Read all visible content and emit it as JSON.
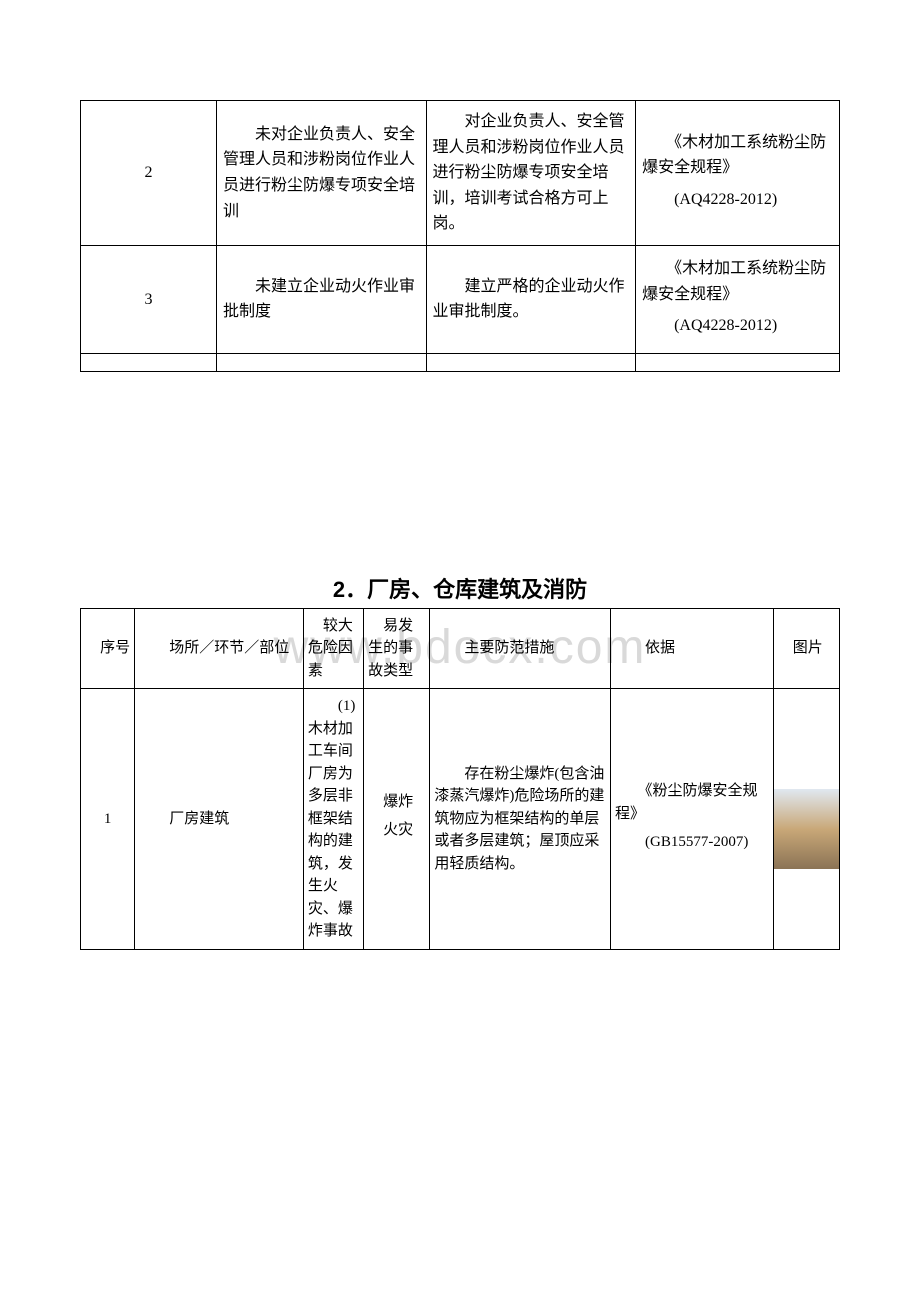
{
  "watermark": "www.bdocx.com",
  "table1": {
    "rows": [
      {
        "num": "2",
        "risk": "　　未对企业负责人、安全管理人员和涉粉岗位作业人员进行粉尘防爆专项安全培训",
        "measure": "　　对企业负责人、安全管理人员和涉粉岗位作业人员进行粉尘防爆专项安全培训，培训考试合格方可上岗。",
        "basis_title": "　　《木材加工系统粉尘防爆安全规程》",
        "basis_code": "　　(AQ4228-2012)"
      },
      {
        "num": "3",
        "risk": "　　未建立企业动火作业审批制度",
        "measure": "　　建立严格的企业动火作业审批制度。",
        "basis_title": "　　《木材加工系统粉尘防爆安全规程》",
        "basis_code": "　　(AQ4228-2012)"
      }
    ]
  },
  "section2_title": "2．厂房、仓库建筑及消防",
  "table2": {
    "headers": {
      "num": "　序号",
      "place": "　　场所／环节／部位",
      "risk": "　较大危险因素",
      "type": "　易发生的事故类型",
      "measure": "　　主要防范措施",
      "basis": "　　依据",
      "pic": "　图片"
    },
    "row1": {
      "num": "1",
      "place": "　　厂房建筑",
      "risk": "　　(1)木材加工车间厂房为多层非框架结构的建筑，发生火灾、爆炸事故",
      "type1": "　爆炸",
      "type2": "　火灾",
      "measure": "　　存在粉尘爆炸(包含油漆蒸汽爆炸)危险场所的建筑物应为框架结构的单层或者多层建筑；屋顶应采用轻质结构。",
      "basis_title": "　　《粉尘防爆安全规程》",
      "basis_code": "　　(GB15577-2007)"
    }
  }
}
